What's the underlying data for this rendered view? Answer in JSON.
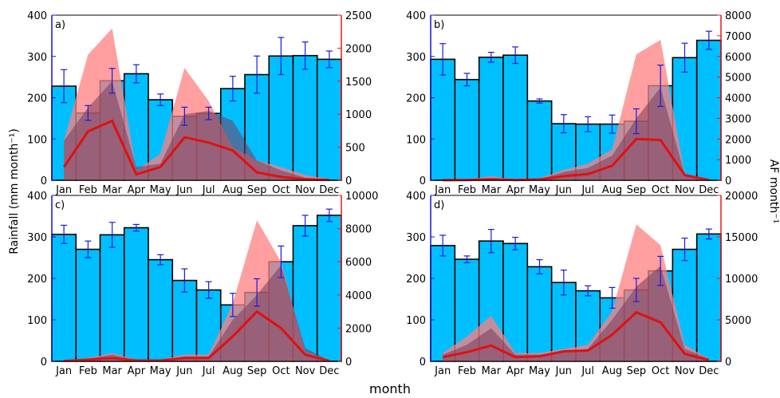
{
  "figure": {
    "ylabel_left": "Rainfall (mm month⁻¹)",
    "ylabel_right": "AF month⁻¹",
    "xlabel": "month"
  },
  "colors": {
    "bar_fill": "#00bfff",
    "bar_edge": "#000000",
    "error_bar": "#1a1adb",
    "af_fill": "#ff7f80",
    "af_fill_alpha": 0.85,
    "af_line": "#e01010",
    "left_axis": "#1414d6",
    "right_axis": "#e61a1a"
  },
  "chart_data": [
    {
      "type": "bar",
      "panel": "a)",
      "categories": [
        "Jan",
        "Feb",
        "Mar",
        "Apr",
        "May",
        "Jun",
        "Jul",
        "Aug",
        "Sep",
        "Oct",
        "Nov",
        "Dec"
      ],
      "rainfall": {
        "values": [
          228,
          163,
          241,
          258,
          195,
          155,
          162,
          222,
          256,
          301,
          302,
          293
        ],
        "errors": [
          40,
          18,
          30,
          22,
          14,
          22,
          15,
          30,
          45,
          45,
          33,
          20
        ],
        "ylim": [
          0,
          400
        ],
        "yticks": [
          0,
          100,
          200,
          300,
          400
        ]
      },
      "af_band": {
        "upper": [
          600,
          1900,
          2300,
          150,
          400,
          1700,
          1200,
          500,
          300,
          200,
          80,
          20
        ],
        "lower": [
          0,
          0,
          0,
          0,
          0,
          0,
          0,
          0,
          0,
          0,
          0,
          0
        ]
      },
      "af_line": [
        200,
        740,
        900,
        90,
        200,
        650,
        570,
        450,
        120,
        50,
        15,
        5
      ],
      "af_inner": [
        600,
        1100,
        1500,
        200,
        250,
        1000,
        1050,
        900,
        300,
        150,
        40,
        10
      ],
      "af_ylim": [
        0,
        2500
      ],
      "af_ticks": [
        0,
        500,
        1000,
        1500,
        2000,
        2500
      ]
    },
    {
      "type": "bar",
      "panel": "b)",
      "categories": [
        "Jan",
        "Feb",
        "Mar",
        "Apr",
        "May",
        "Jun",
        "Jul",
        "Aug",
        "Sep",
        "Oct",
        "Nov",
        "Dec"
      ],
      "rainfall": {
        "values": [
          293,
          244,
          298,
          303,
          192,
          137,
          136,
          136,
          143,
          229,
          297,
          339
        ],
        "errors": [
          38,
          15,
          12,
          20,
          5,
          22,
          18,
          22,
          30,
          50,
          35,
          22
        ],
        "ylim": [
          0,
          400
        ],
        "yticks": [
          0,
          100,
          200,
          300,
          400
        ]
      },
      "af_band": {
        "upper": [
          20,
          40,
          200,
          40,
          100,
          500,
          800,
          1500,
          6100,
          6800,
          300,
          50
        ],
        "lower": [
          0,
          0,
          0,
          0,
          0,
          0,
          0,
          0,
          0,
          0,
          0,
          0
        ]
      },
      "af_line": [
        5,
        10,
        50,
        10,
        40,
        200,
        300,
        700,
        2000,
        1950,
        250,
        10
      ],
      "af_inner": [
        10,
        20,
        100,
        20,
        60,
        400,
        600,
        1200,
        3000,
        4500,
        300,
        20
      ],
      "af_ylim": [
        0,
        8000
      ],
      "af_ticks": [
        0,
        1000,
        2000,
        3000,
        4000,
        5000,
        6000,
        7000,
        8000
      ]
    },
    {
      "type": "bar",
      "panel": "c)",
      "categories": [
        "Jan",
        "Feb",
        "Mar",
        "Apr",
        "May",
        "Jun",
        "Jul",
        "Aug",
        "Sep",
        "Oct",
        "Nov",
        "Dec"
      ],
      "rainfall": {
        "values": [
          306,
          270,
          305,
          322,
          245,
          195,
          172,
          136,
          166,
          240,
          327,
          352
        ],
        "errors": [
          22,
          20,
          30,
          8,
          12,
          28,
          20,
          28,
          33,
          38,
          25,
          15
        ],
        "ylim": [
          0,
          400
        ],
        "yticks": [
          0,
          100,
          200,
          300,
          400
        ]
      },
      "af_band": {
        "upper": [
          50,
          200,
          500,
          100,
          100,
          400,
          400,
          3500,
          8500,
          6000,
          600,
          50
        ],
        "lower": [
          0,
          0,
          0,
          0,
          0,
          0,
          0,
          0,
          0,
          0,
          0,
          0
        ]
      },
      "af_line": [
        20,
        100,
        200,
        50,
        50,
        200,
        200,
        1500,
        3000,
        2000,
        400,
        20
      ],
      "af_inner": [
        40,
        150,
        400,
        80,
        80,
        300,
        300,
        2500,
        4000,
        5800,
        800,
        40
      ],
      "af_ylim": [
        0,
        10000
      ],
      "af_ticks": [
        0,
        2000,
        4000,
        6000,
        8000,
        10000
      ]
    },
    {
      "type": "bar",
      "panel": "d)",
      "categories": [
        "Jan",
        "Feb",
        "Mar",
        "Apr",
        "May",
        "Jun",
        "Jul",
        "Aug",
        "Sep",
        "Oct",
        "Nov",
        "Dec"
      ],
      "rainfall": {
        "values": [
          279,
          246,
          290,
          284,
          228,
          190,
          170,
          153,
          172,
          218,
          270,
          307
        ],
        "errors": [
          25,
          8,
          28,
          15,
          17,
          30,
          12,
          25,
          28,
          35,
          27,
          12
        ],
        "ylim": [
          0,
          400
        ],
        "yticks": [
          0,
          100,
          200,
          300,
          400
        ]
      },
      "af_band": {
        "upper": [
          1000,
          3000,
          5500,
          1000,
          1000,
          1500,
          2000,
          6000,
          16500,
          14000,
          2000,
          300
        ],
        "lower": [
          0,
          0,
          0,
          0,
          0,
          0,
          0,
          0,
          0,
          0,
          0,
          0
        ]
      },
      "af_line": [
        500,
        1100,
        1900,
        500,
        600,
        1200,
        1300,
        3200,
        5900,
        4700,
        900,
        150
      ],
      "af_inner": [
        800,
        2000,
        4000,
        800,
        800,
        1200,
        1500,
        5000,
        9000,
        11500,
        1500,
        300
      ],
      "af_ylim": [
        0,
        20000
      ],
      "af_ticks": [
        0,
        5000,
        10000,
        15000,
        20000
      ]
    }
  ]
}
